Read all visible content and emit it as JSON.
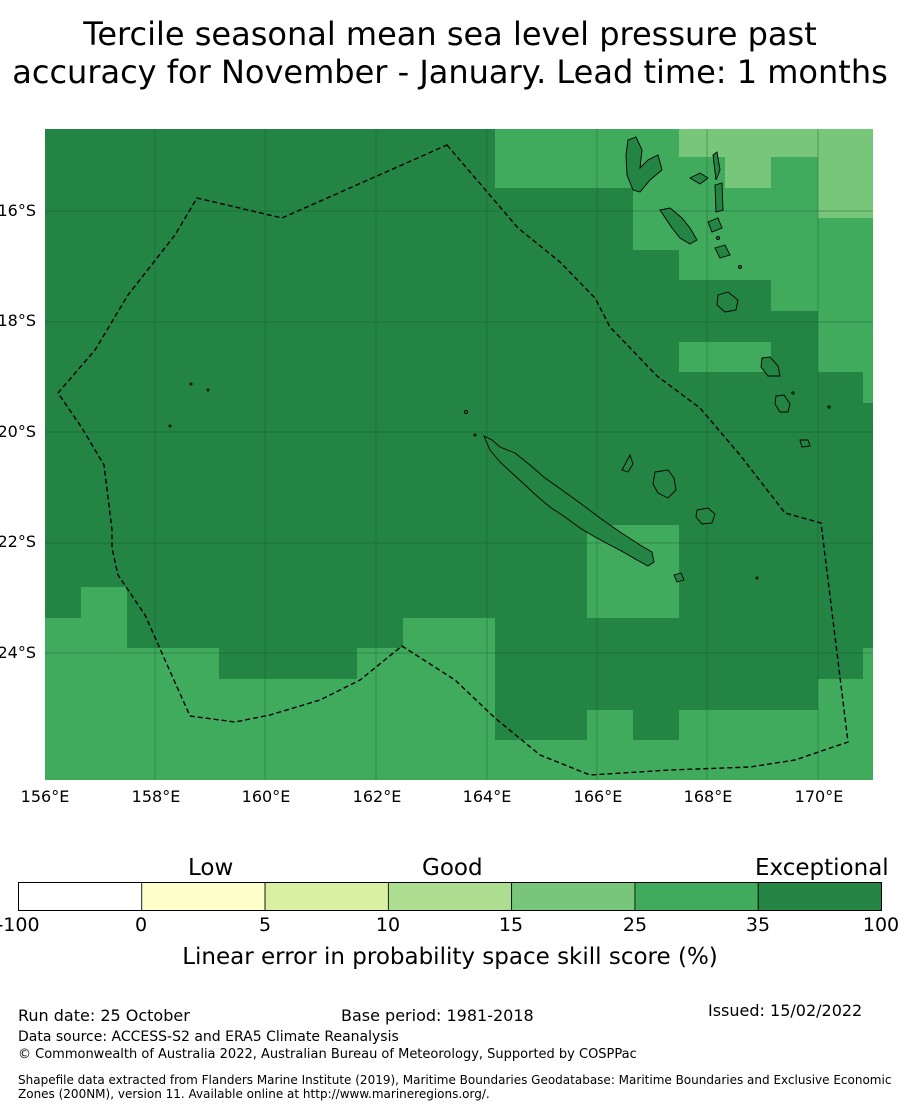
{
  "title": {
    "line1": "Tercile seasonal mean sea level pressure past",
    "line2": "accuracy for November - January. Lead time: 1 months"
  },
  "map": {
    "lat_labels": [
      "16°S",
      "18°S",
      "20°S",
      "22°S",
      "24°S"
    ],
    "lon_labels": [
      "156°E",
      "158°E",
      "160°E",
      "162°E",
      "164°E",
      "166°E",
      "168°E",
      "170°E"
    ],
    "colors": {
      "exceptional_35_100": "#238443",
      "band_25_35": "#41ab5d",
      "band_15_25": "#78c679",
      "gridline": "#1a5c30",
      "coast": "#000000",
      "eez_boundary": "#000000"
    }
  },
  "colorbar": {
    "categories": [
      "Low",
      "Good",
      "Exceptional"
    ],
    "ticks": [
      "-100",
      "0",
      "5",
      "10",
      "15",
      "25",
      "35",
      "100"
    ],
    "colors": [
      "#ffffff",
      "#ffffcc",
      "#d9f0a3",
      "#addd8e",
      "#78c679",
      "#41ab5d",
      "#238443"
    ],
    "label": "Linear error in probability space skill score (%)"
  },
  "footer": {
    "run_date": "Run date: 25 October",
    "base_period": "Base period: 1981-2018",
    "issued": "Issued: 15/02/2022",
    "data_source": "Data source: ACCESS-S2 and ERA5 Climate Reanalysis",
    "copyright": "© Commonwealth of Australia 2022, Australian Bureau of Meteorology, Supported by COSPPac",
    "shapefile": "Shapefile data extracted from Flanders Marine Institute (2019), Maritime Boundaries Geodatabase: Maritime Boundaries and Exclusive Economic Zones (200NM), version 11. Available online at http://www.marineregions.org/."
  }
}
